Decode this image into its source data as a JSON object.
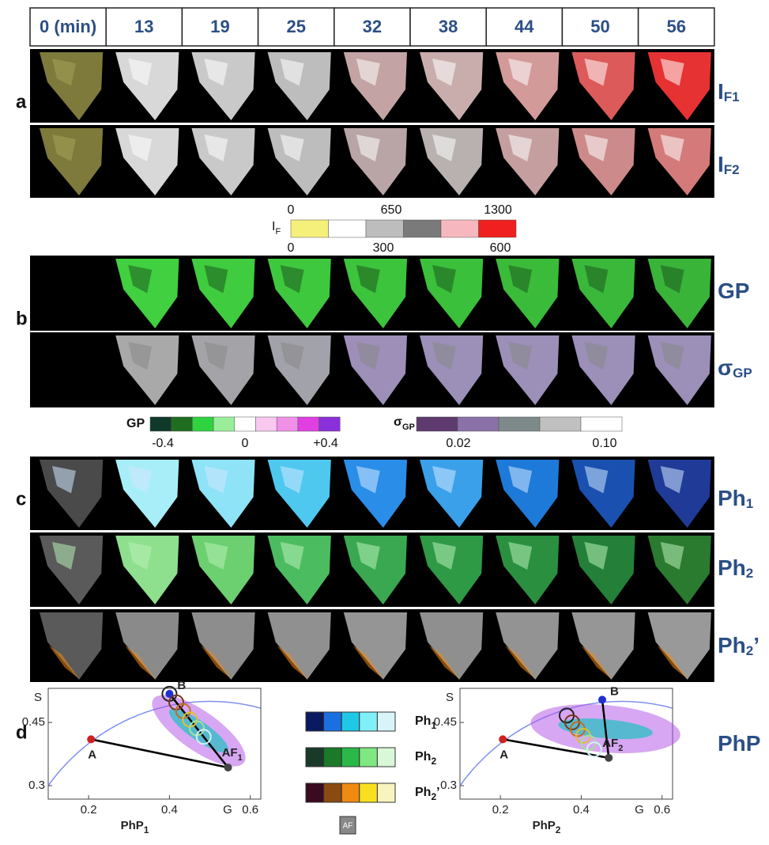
{
  "header": {
    "times": [
      "0 (min)",
      "13",
      "19",
      "25",
      "32",
      "38",
      "44",
      "50",
      "56"
    ]
  },
  "panels": [
    "a",
    "b",
    "c",
    "d"
  ],
  "rows": [
    {
      "main": "I",
      "sub": "F1"
    },
    {
      "main": "I",
      "sub": "F2"
    },
    {
      "main": "GP"
    },
    {
      "main": "σ",
      "sub": "GP"
    },
    {
      "main": "Ph",
      "sub": "1"
    },
    {
      "main": "Ph",
      "sub": "2"
    },
    {
      "main": "Ph",
      "sub": "2",
      "suffix": "’"
    },
    {
      "main": "PhP"
    }
  ],
  "if_colorbar": {
    "label": {
      "main": "I",
      "sub": "F"
    },
    "top_labels": [
      "0",
      "650",
      "1300"
    ],
    "bottom_labels": [
      "0",
      "300",
      "600"
    ]
  },
  "gp_colorbar": {
    "label": "GP",
    "labels": [
      "-0.4",
      "0",
      "+0.4"
    ]
  },
  "sigma_colorbar": {
    "label": {
      "main": "σ",
      "sub": "GP"
    },
    "labels": [
      "0.02",
      "0.10"
    ]
  },
  "legend": {
    "rows": [
      {
        "main": "Ph",
        "sub": "1"
      },
      {
        "main": "Ph",
        "sub": "2"
      },
      {
        "main": "Ph",
        "sub": "2",
        "suffix": "’"
      }
    ],
    "af": "AF"
  },
  "phasor_plots": [
    {
      "y_label": "S",
      "x_label": {
        "main": "PhP",
        "sub": "1"
      },
      "g_label": "G",
      "xlim": [
        0.1,
        0.626
      ],
      "ylim": [
        0.268,
        0.531
      ],
      "xticks": [
        0.2,
        0.4,
        0.6
      ],
      "yticks": [
        0.3,
        0.45
      ],
      "points": [
        {
          "name": {
            "main": "A"
          },
          "x": 0.206,
          "y": 0.41
        },
        {
          "name": {
            "main": "B"
          },
          "x": 0.4,
          "y": 0.518
        },
        {
          "name": {
            "main": "AF",
            "sub": "1"
          },
          "x": 0.545,
          "y": 0.343
        }
      ]
    },
    {
      "y_label": "S",
      "x_label": {
        "main": "PhP",
        "sub": "2"
      },
      "g_label": "G",
      "xlim": [
        0.1,
        0.626
      ],
      "ylim": [
        0.268,
        0.531
      ],
      "xticks": [
        0.2,
        0.4,
        0.6
      ],
      "yticks": [
        0.3,
        0.45
      ],
      "points": [
        {
          "name": {
            "main": "A"
          },
          "x": 0.206,
          "y": 0.41
        },
        {
          "name": {
            "main": "B"
          },
          "x": 0.452,
          "y": 0.504
        },
        {
          "name": {
            "main": "AF",
            "sub": "2"
          },
          "x": 0.468,
          "y": 0.366
        }
      ]
    }
  ]
}
